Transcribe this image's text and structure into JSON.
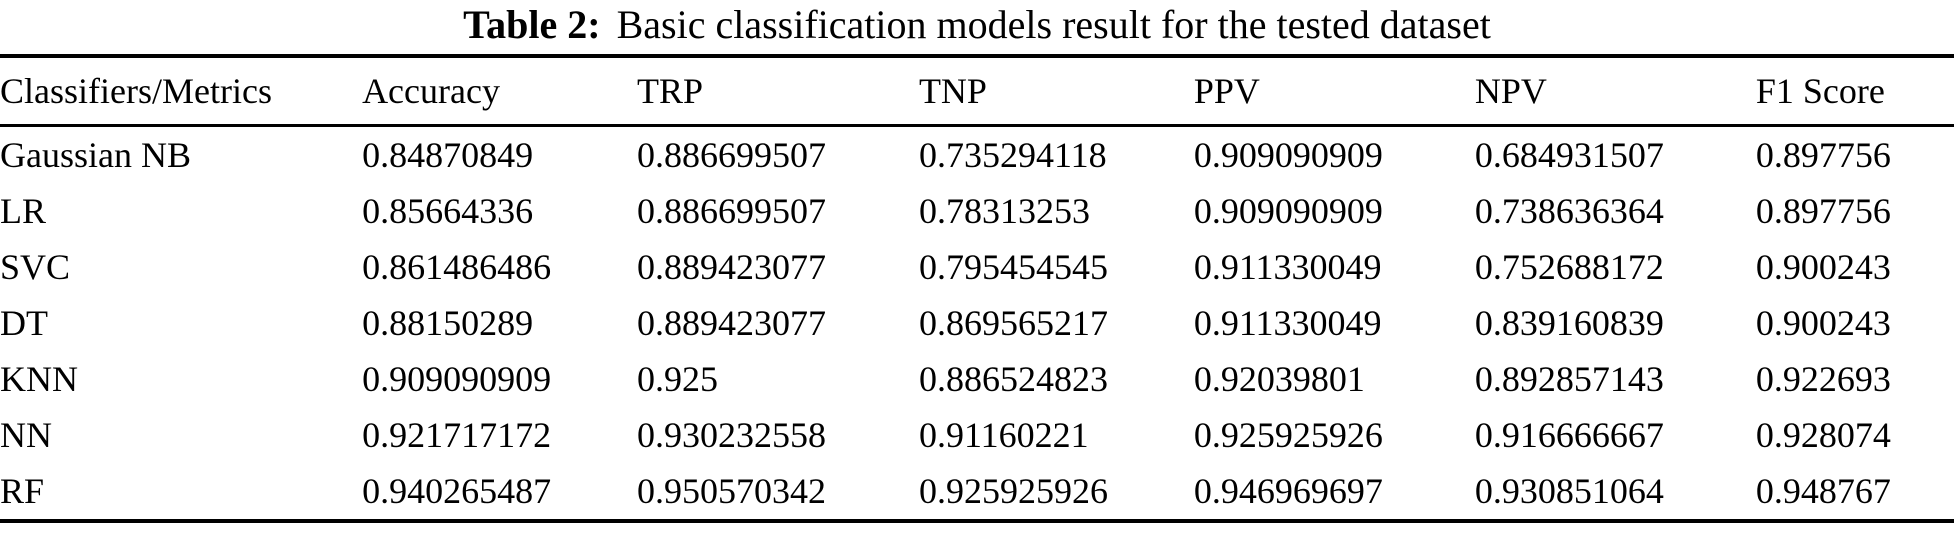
{
  "title": {
    "label": "Table 2:",
    "text": "Basic classification models result for the tested dataset"
  },
  "table": {
    "columns": [
      "Classifiers/Metrics",
      "Accuracy",
      "TRP",
      "TNP",
      "PPV",
      "NPV",
      "F1 Score"
    ],
    "rows": [
      {
        "cells": [
          "Gaussian NB",
          "0.84870849",
          "0.886699507",
          "0.735294118",
          "0.909090909",
          "0.684931507",
          "0.897756"
        ]
      },
      {
        "cells": [
          "LR",
          "0.85664336",
          "0.886699507",
          "0.78313253",
          "0.909090909",
          "0.738636364",
          "0.897756"
        ]
      },
      {
        "cells": [
          "SVC",
          "0.861486486",
          "0.889423077",
          "0.795454545",
          "0.911330049",
          "0.752688172",
          "0.900243"
        ]
      },
      {
        "cells": [
          "DT",
          "0.88150289",
          "0.889423077",
          "0.869565217",
          "0.911330049",
          "0.839160839",
          "0.900243"
        ]
      },
      {
        "cells": [
          "KNN",
          "0.909090909",
          "0.925",
          "0.886524823",
          "0.92039801",
          "0.892857143",
          "0.922693"
        ]
      },
      {
        "cells": [
          "NN",
          "0.921717172",
          "0.930232558",
          "0.91160221",
          "0.925925926",
          "0.916666667",
          "0.928074"
        ]
      },
      {
        "cells": [
          "RF",
          "0.940265487",
          "0.950570342",
          "0.925925926",
          "0.946969697",
          "0.930851064",
          "0.948767"
        ]
      }
    ]
  },
  "colors": {
    "text": "#000000",
    "background": "#ffffff",
    "rule": "#000000"
  },
  "chart_data": {
    "type": "table",
    "title": "Table 2: Basic classification models result for the tested dataset",
    "columns": [
      "Classifiers/Metrics",
      "Accuracy",
      "TRP",
      "TNP",
      "PPV",
      "NPV",
      "F1 Score"
    ],
    "rows": [
      [
        "Gaussian NB",
        0.84870849,
        0.886699507,
        0.735294118,
        0.909090909,
        0.684931507,
        0.897756
      ],
      [
        "LR",
        0.85664336,
        0.886699507,
        0.78313253,
        0.909090909,
        0.738636364,
        0.897756
      ],
      [
        "SVC",
        0.861486486,
        0.889423077,
        0.795454545,
        0.911330049,
        0.752688172,
        0.900243
      ],
      [
        "DT",
        0.88150289,
        0.889423077,
        0.869565217,
        0.911330049,
        0.839160839,
        0.900243
      ],
      [
        "KNN",
        0.909090909,
        0.925,
        0.886524823,
        0.92039801,
        0.892857143,
        0.922693
      ],
      [
        "NN",
        0.921717172,
        0.930232558,
        0.91160221,
        0.925925926,
        0.916666667,
        0.928074
      ],
      [
        "RF",
        0.940265487,
        0.950570342,
        0.925925926,
        0.946969697,
        0.930851064,
        0.948767
      ]
    ]
  }
}
